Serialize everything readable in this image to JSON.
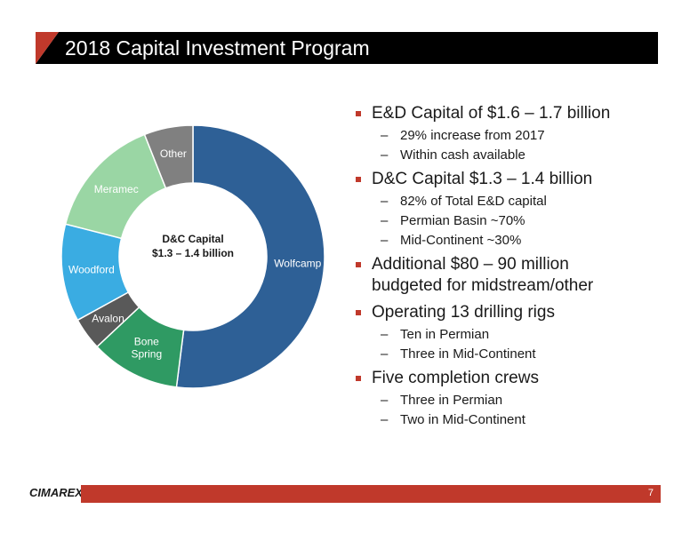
{
  "title": "2018 Capital Investment Program",
  "colors": {
    "accent": "#c0392b",
    "title_bar": "#000000"
  },
  "chart_data": {
    "type": "pie",
    "style": "donut",
    "center_label": [
      "D&C Capital",
      "$1.3 – 1.4 billion"
    ],
    "slices": [
      {
        "label": "Wolfcamp",
        "value": 52,
        "color": "#2e6096",
        "label_color": "#ffffff"
      },
      {
        "label": "Bone Spring",
        "value": 11,
        "color": "#2f9a63",
        "label_color": "#ffffff"
      },
      {
        "label": "Avalon",
        "value": 4,
        "color": "#595959",
        "label_color": "#ffffff"
      },
      {
        "label": "Woodford",
        "value": 12,
        "color": "#3aace2",
        "label_color": "#ffffff"
      },
      {
        "label": "Meramec",
        "value": 15,
        "color": "#9ad6a4",
        "label_color": "#ffffff"
      },
      {
        "label": "Other",
        "value": 6,
        "color": "#808080",
        "label_color": "#ffffff"
      }
    ]
  },
  "bullets": [
    {
      "text": "E&D Capital of $1.6 – 1.7 billion",
      "subs": [
        "29% increase from 2017",
        "Within cash available"
      ]
    },
    {
      "text": "D&C Capital $1.3 – 1.4 billion",
      "subs": [
        "82% of Total E&D capital",
        "Permian Basin ~70%",
        "Mid-Continent ~30%"
      ]
    },
    {
      "text": "Additional $80 – 90 million budgeted for midstream/other",
      "subs": []
    },
    {
      "text": "Operating 13 drilling rigs",
      "subs": [
        "Ten in Permian",
        "Three in Mid-Continent"
      ]
    },
    {
      "text": "Five completion crews",
      "subs": [
        "Three in Permian",
        "Two in Mid-Continent"
      ]
    }
  ],
  "footer": {
    "logo_text": "CIMAREX",
    "page_number": "7"
  }
}
